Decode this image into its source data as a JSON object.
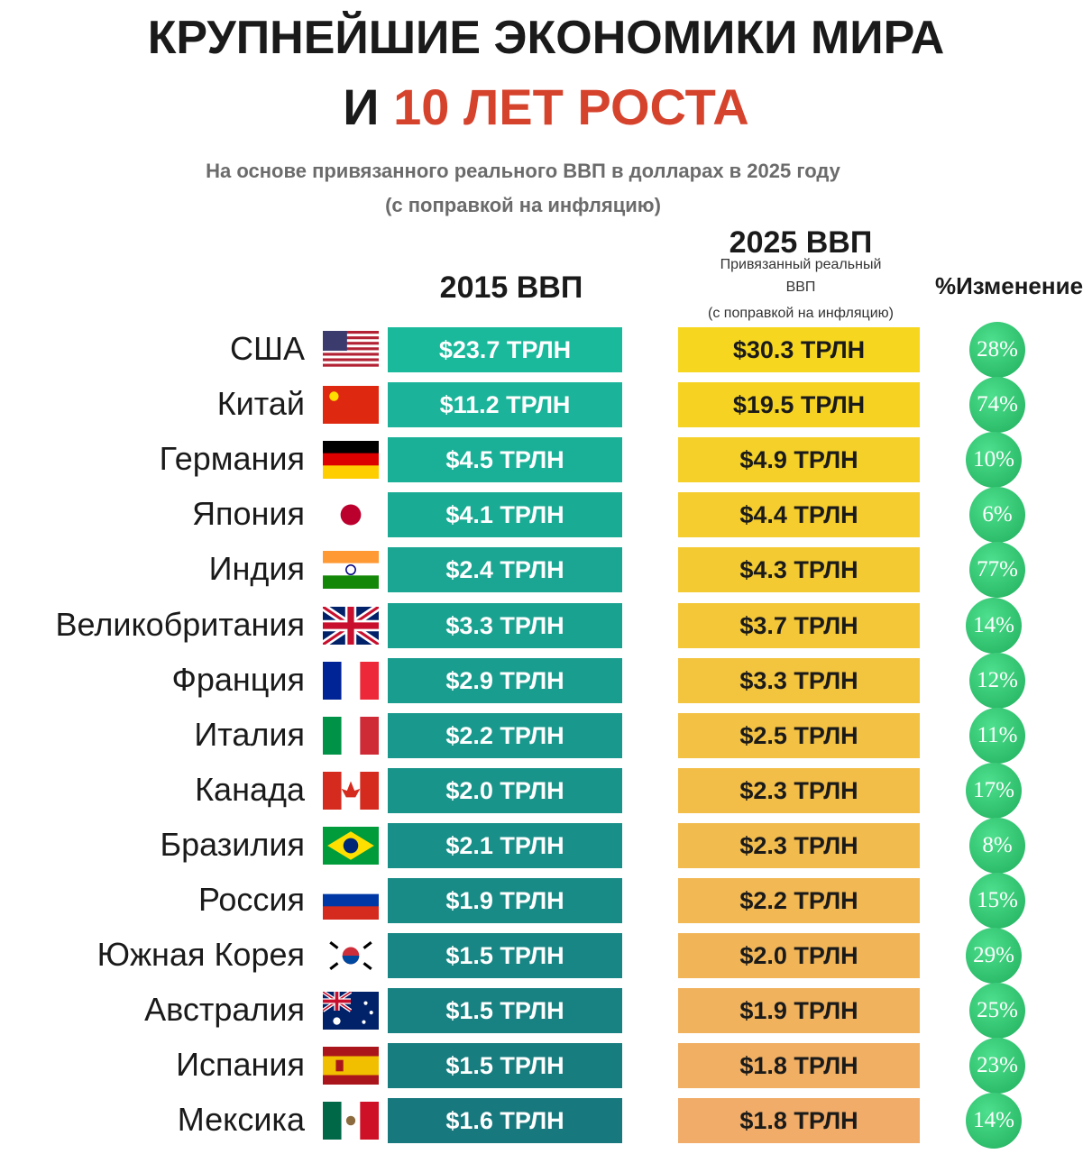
{
  "header": {
    "title_line1": "КРУПНЕЙШИЕ ЭКОНОМИКИ МИРА",
    "title_line2_prefix": "И",
    "title_line2_highlight": "10 ЛЕТ РОСТА",
    "subtitle_line1": "На основе привязанного реального ВВП в долларах в 2025 году",
    "subtitle_line2": "(с поправкой на инфляцию)"
  },
  "columns": {
    "gdp2015": "2015 ВВП",
    "gdp2025": "2025 ВВП",
    "gdp2025_note1": "Привязанный реальный",
    "gdp2025_note2": "ВВП",
    "gdp2025_note3": "(с поправкой на инфляцию)",
    "change": "%Изменение"
  },
  "table": {
    "rows": [
      [
        "США",
        "$23.7 ТРЛН",
        "$30.3 ТРЛН",
        "28%"
      ],
      [
        "Китай",
        "$11.2 ТРЛН",
        "$19.5 ТРЛН",
        "74%"
      ],
      [
        "Германия",
        "$4.5 ТРЛН",
        "$4.9 ТРЛН",
        "10%"
      ],
      [
        "Япония",
        "$4.1 ТРЛН",
        "$4.4 ТРЛН",
        "6%"
      ],
      [
        "Индия",
        "$2.4 ТРЛН",
        "$4.3 ТРЛН",
        "77%"
      ],
      [
        "Великобритания",
        "$3.3 ТРЛН",
        "$3.7 ТРЛН",
        "14%"
      ],
      [
        "Франция",
        "$2.9 ТРЛН",
        "$3.3 ТРЛН",
        "12%"
      ],
      [
        "Италия",
        "$2.2 ТРЛН",
        "$2.5 ТРЛН",
        "11%"
      ],
      [
        "Канада",
        "$2.0 ТРЛН",
        "$2.3 ТРЛН",
        "17%"
      ],
      [
        "Бразилия",
        "$2.1 ТРЛН",
        "$2.3 ТРЛН",
        "8%"
      ],
      [
        "Россия",
        "$1.9 ТРЛН",
        "$2.2 ТРЛН",
        "15%"
      ],
      [
        "Южная Корея",
        "$1.5 ТРЛН",
        "$2.0 ТРЛН",
        "29%"
      ],
      [
        "Австралия",
        "$1.5 ТРЛН",
        "$1.9 ТРЛН",
        "25%"
      ],
      [
        "Испания",
        "$1.5 ТРЛН",
        "$1.8 ТРЛН",
        "23%"
      ],
      [
        "Мексика",
        "$1.6 ТРЛН",
        "$1.8 ТРЛН",
        "14%"
      ]
    ]
  }
}
